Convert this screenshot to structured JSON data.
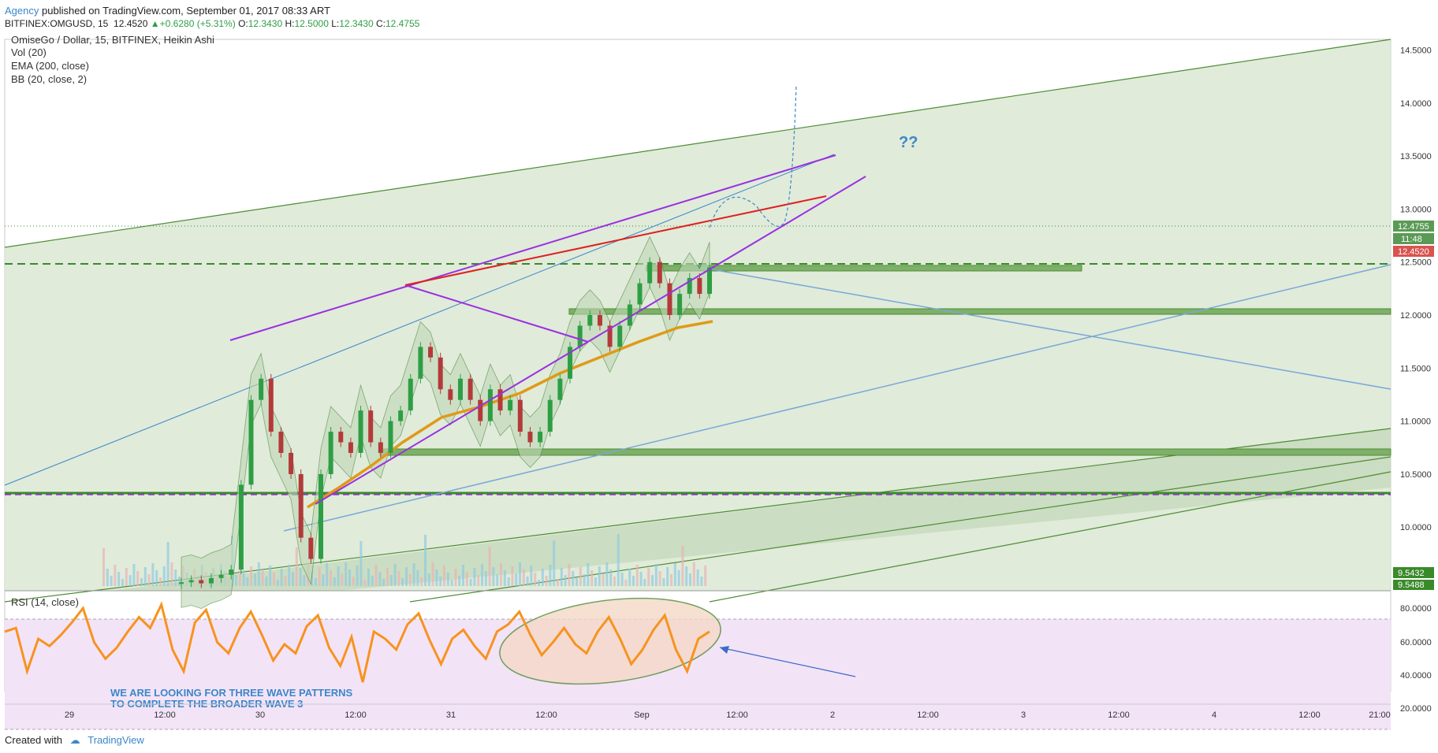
{
  "header": {
    "publisher": "Agency",
    "published_text": "published on TradingView.com, September 01, 2017 08:33 ART",
    "symbol_line": "BITFINEX:OMGUSD, 15",
    "last": "12.4520",
    "change": "+0.6280 (+5.31%)",
    "o_label": "O:",
    "o_value": "12.3430",
    "h_label": "H:",
    "h_value": "12.5000",
    "l_label": "L:",
    "l_value": "12.3430",
    "c_label": "C:",
    "c_value": "12.4755"
  },
  "legend": {
    "title": "OmiseGo / Dollar, 15, BITFINEX, Heikin Ashi",
    "vol": "Vol (20)",
    "ema": "EMA (200, close)",
    "bb": "BB (20, close, 2)"
  },
  "price_badges": {
    "close": "12.4755",
    "countdown": "11:48",
    "last": "12.4520",
    "level_a": "9.5432",
    "level_b": "9.5488"
  },
  "annotations": {
    "question": "??",
    "note_line1": "WE ARE LOOKING FOR THREE WAVE PATTERNS",
    "note_line2": "TO COMPLETE THE BROADER WAVE 3"
  },
  "rsi": {
    "label": "RSI (14, close)",
    "ticks": [
      "80.0000",
      "60.0000",
      "40.0000",
      "20.0000"
    ]
  },
  "footer": {
    "created_with": "Created with",
    "brand": "TradingView"
  },
  "colors": {
    "candle_up": "#2e9e45",
    "candle_down": "#b33a3a",
    "ema": "#e09a17",
    "channel": "#9b30e0",
    "resistance": "#e02020",
    "zone_fill": "#d6e4cf",
    "zone_stroke": "#4d8c33",
    "rsi_line": "#f7931e",
    "rsi_band": "#f3e3f7"
  },
  "chart_data": {
    "type": "line",
    "title": "OmiseGo / Dollar, 15, BITFINEX, Heikin Ashi",
    "x_ticks": [
      "29",
      "12:00",
      "30",
      "12:00",
      "31",
      "12:00",
      "Sep",
      "12:00",
      "2",
      "12:00",
      "3",
      "12:00",
      "4",
      "12:00",
      "21:00"
    ],
    "y_ticks": [
      "14.5000",
      "14.0000",
      "13.5000",
      "13.0000",
      "12.5000",
      "12.0000",
      "11.5000",
      "11.0000",
      "10.5000",
      "10.0000"
    ],
    "ylim": [
      9.4,
      14.6
    ],
    "series": [
      {
        "name": "",
        "values": [
          9.48,
          9.5,
          9.47,
          9.52,
          9.55,
          9.6,
          10.4,
          11.2,
          11.4,
          10.9,
          10.7,
          10.5,
          9.9,
          9.7,
          10.5,
          10.9,
          10.8,
          10.7,
          11.1,
          10.8,
          10.7,
          11.0,
          11.1,
          11.4,
          11.7,
          11.6,
          11.3,
          11.2,
          11.4,
          11.2,
          11.0,
          11.3,
          11.1,
          11.2,
          10.9,
          10.8,
          10.9,
          11.2,
          11.4,
          11.7,
          11.9,
          12.0,
          11.9,
          11.7,
          11.9,
          12.1,
          12.3,
          12.5,
          12.3,
          12.0,
          12.2,
          12.35,
          12.2,
          12.45
        ]
      }
    ],
    "rsi_values": [
      70,
      72,
      48,
      66,
      62,
      68,
      75,
      83,
      64,
      55,
      61,
      70,
      78,
      72,
      85,
      60,
      48,
      75,
      82,
      64,
      58,
      72,
      81,
      68,
      54,
      63,
      58,
      73,
      79,
      61,
      51,
      67,
      42,
      70,
      66,
      60,
      74,
      80,
      65,
      52,
      66,
      71,
      62,
      55,
      70,
      74,
      81,
      68,
      57,
      64,
      72,
      63,
      58,
      70,
      78,
      66,
      52,
      60,
      71,
      79,
      60,
      48,
      66,
      70
    ],
    "rsi_ylim": [
      15,
      90
    ]
  }
}
